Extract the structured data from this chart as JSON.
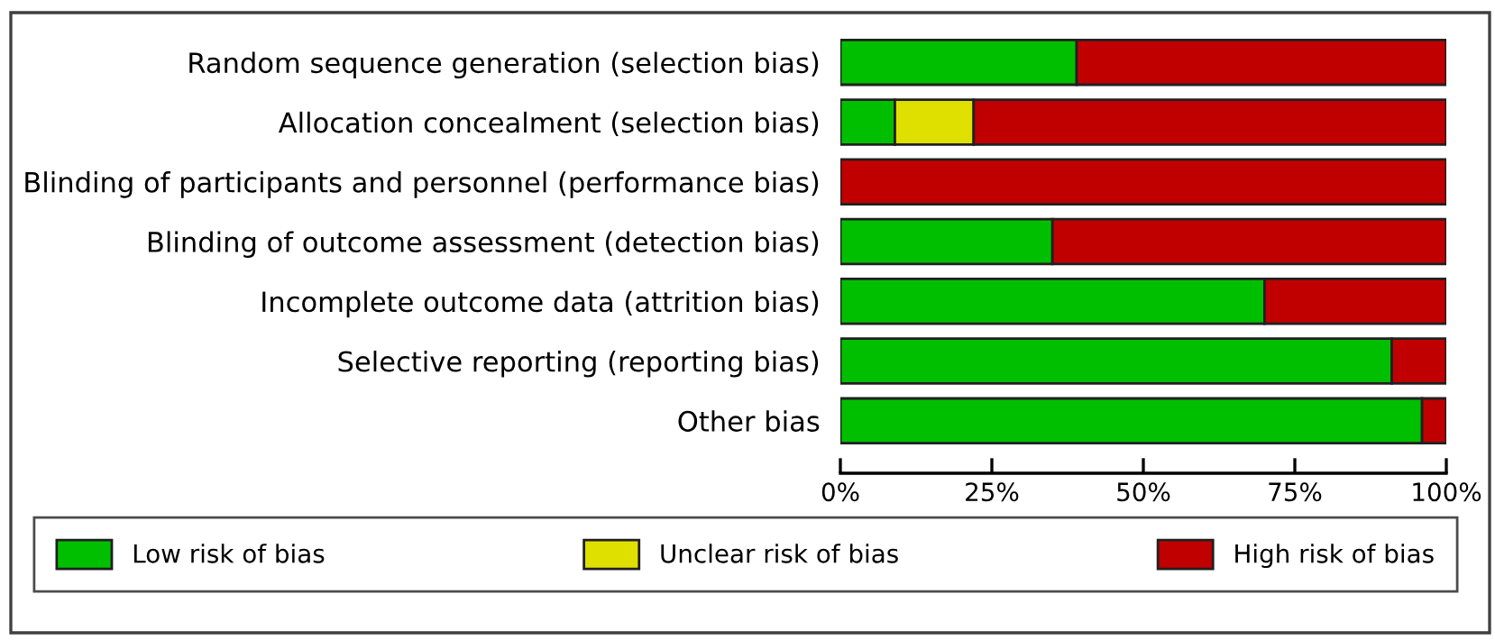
{
  "chart_data": {
    "type": "bar",
    "orientation": "horizontal",
    "stacked": true,
    "categories": [
      "Random sequence generation (selection bias)",
      "Allocation concealment (selection bias)",
      "Blinding of participants and personnel (performance bias)",
      "Blinding of outcome assessment (detection bias)",
      "Incomplete outcome data (attrition bias)",
      "Selective reporting (reporting bias)",
      "Other bias"
    ],
    "series": [
      {
        "name": "Low risk of bias",
        "color": "#00bf00",
        "values": [
          39,
          9,
          null,
          35,
          70,
          91,
          96
        ]
      },
      {
        "name": "Unclear risk of bias",
        "color": "#e0e000",
        "values": [
          null,
          13,
          null,
          null,
          null,
          null,
          null
        ]
      },
      {
        "name": "High risk of bias",
        "color": "#c00000",
        "values": [
          61,
          78,
          100,
          65,
          30,
          9,
          4
        ]
      }
    ],
    "xlim": [
      0,
      100
    ],
    "xticks": [
      {
        "value": 0,
        "label": "0%"
      },
      {
        "value": 25,
        "label": "25%"
      },
      {
        "value": 50,
        "label": "50%"
      },
      {
        "value": 75,
        "label": "75%"
      },
      {
        "value": 100,
        "label": "100%"
      }
    ],
    "grid": false,
    "legend": "bottom"
  }
}
